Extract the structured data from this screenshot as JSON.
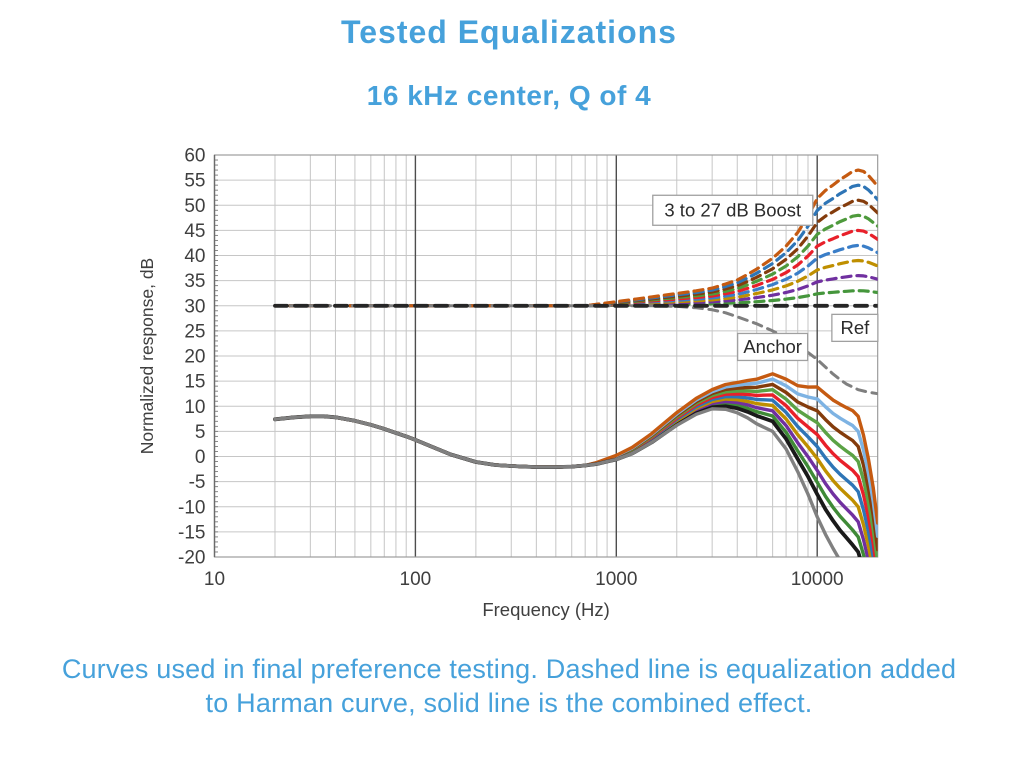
{
  "page": {
    "background": "#ffffff",
    "accent_blue": "#46A1DB"
  },
  "header": {
    "title": "Tested Equalizations",
    "subtitle": "16 kHz center, Q of 4"
  },
  "caption": "Curves used in final preference testing. Dashed line is equalization added to Harman curve, solid line is the combined effect.",
  "chart_data": {
    "type": "line",
    "xlabel": "Frequency (Hz)",
    "ylabel": "Normalized response, dB",
    "x_scale": "log",
    "xlim": [
      10,
      20000
    ],
    "ylim": [
      -20,
      60
    ],
    "y_tick_step": 5,
    "x_major_ticks": [
      10,
      100,
      1000,
      10000
    ],
    "grid": true,
    "legend": "none",
    "annotations": [
      {
        "id": "boost-range-label",
        "text": "3 to 27 dB Boost",
        "freq_hz": 3800,
        "db": 49.0
      },
      {
        "id": "ref-label",
        "text": "Ref",
        "freq_hz": 15400,
        "db": 25.6
      },
      {
        "id": "anchor-label",
        "text": "Anchor",
        "freq_hz": 6000,
        "db": 21.8
      }
    ],
    "eq": {
      "center_hz": 16000,
      "q": 4,
      "boosts_db": [
        3,
        6,
        9,
        12,
        15,
        18,
        21,
        24,
        27
      ],
      "baseline_db": 30,
      "shape": {
        "freqs": [
          20,
          700,
          1000,
          1200,
          1500,
          2000,
          2500,
          3000,
          3500,
          4000,
          4500,
          5000,
          6000,
          7000,
          8000,
          9000,
          10000,
          11000,
          12000,
          13000,
          14000,
          15000,
          16000,
          17000,
          18000,
          19000,
          20000
        ],
        "gain_fraction": [
          0,
          0,
          0.03,
          0.045,
          0.065,
          0.09,
          0.11,
          0.13,
          0.16,
          0.19,
          0.23,
          0.27,
          0.35,
          0.44,
          0.54,
          0.66,
          0.79,
          0.85,
          0.89,
          0.93,
          0.96,
          0.99,
          1.0,
          0.99,
          0.96,
          0.92,
          0.88
        ]
      }
    },
    "ref_dashed": {
      "level_db": 30,
      "span_hz": [
        20,
        20000
      ],
      "color": "#262626"
    },
    "harman_solid": {
      "name": "Ref (Harman curve)",
      "color": "#1A1A1A",
      "freqs": [
        20,
        25,
        30,
        35,
        40,
        50,
        60,
        70,
        80,
        90,
        100,
        120,
        150,
        200,
        250,
        300,
        400,
        500,
        600,
        700,
        800,
        900,
        1000,
        1200,
        1500,
        2000,
        2500,
        3000,
        3500,
        4000,
        4500,
        5000,
        6000,
        7000,
        8000,
        9000,
        10000,
        11000,
        12000,
        13000,
        14000,
        15000,
        16000,
        17000,
        18000,
        19000,
        20000
      ],
      "db": [
        7.4,
        7.8,
        8.0,
        8.0,
        7.8,
        7.1,
        6.3,
        5.5,
        4.7,
        4.0,
        3.3,
        2.0,
        0.4,
        -1.1,
        -1.7,
        -1.9,
        -2.1,
        -2.1,
        -2.0,
        -1.8,
        -1.5,
        -1.0,
        -0.6,
        0.6,
        2.8,
        6.3,
        8.6,
        9.8,
        10.0,
        9.6,
        8.9,
        8.1,
        7.0,
        3.5,
        -0.5,
        -4.0,
        -7.5,
        -10.5,
        -12.8,
        -14.7,
        -16.2,
        -17.6,
        -19.0,
        -22.5,
        -26.5,
        -31.0,
        -37.0
      ]
    },
    "anchor_solid": {
      "name": "Anchor (combined)",
      "color": "#808080",
      "freqs": [
        20,
        25,
        30,
        35,
        40,
        50,
        60,
        70,
        80,
        90,
        100,
        120,
        150,
        200,
        250,
        300,
        400,
        500,
        600,
        700,
        800,
        900,
        1000,
        1200,
        1500,
        2000,
        2500,
        3000,
        3500,
        4000,
        4500,
        5000,
        6000,
        7000,
        8000,
        9000,
        10000,
        11000,
        12000,
        13000,
        14000,
        16000,
        18000,
        20000
      ],
      "db": [
        7.4,
        7.8,
        8.0,
        8.0,
        7.8,
        7.1,
        6.3,
        5.5,
        4.7,
        4.0,
        3.3,
        2.0,
        0.4,
        -1.1,
        -1.7,
        -1.9,
        -2.1,
        -2.1,
        -2.0,
        -1.8,
        -1.5,
        -1.0,
        -0.6,
        0.6,
        2.8,
        6.2,
        8.4,
        9.5,
        9.4,
        8.7,
        7.7,
        6.5,
        5.0,
        1.5,
        -3.0,
        -7.5,
        -12.0,
        -15.5,
        -18.3,
        -20.7,
        -23.0,
        -27.0,
        -31.0,
        -35.0
      ]
    },
    "anchor_eq_dashed": {
      "name": "Anchor EQ",
      "color": "#7F7F7F",
      "freqs": [
        20,
        1000,
        1500,
        2000,
        2500,
        3000,
        3500,
        4000,
        5000,
        6000,
        7000,
        8000,
        9000,
        10000,
        11000,
        12000,
        13000,
        14000,
        16000,
        18000,
        20000
      ],
      "db": [
        30,
        30,
        30,
        29.9,
        29.6,
        29.2,
        28.6,
        27.8,
        26.4,
        25.0,
        23.6,
        22.2,
        20.7,
        19.3,
        17.8,
        16.4,
        15.3,
        14.4,
        13.3,
        12.8,
        12.5
      ]
    },
    "colors": {
      "dashed": {
        "3": "#45963C",
        "6": "#7030A0",
        "9": "#BF8F00",
        "12": "#3A7EC8",
        "15": "#E8202A",
        "18": "#4E9A3C",
        "21": "#843C0C",
        "24": "#2E75B6",
        "27": "#C55A11"
      },
      "solid": {
        "3": "#3F8A37",
        "6": "#7030A0",
        "9": "#BF8F00",
        "12": "#2E75B6",
        "15": "#E8202A",
        "18": "#5BA245",
        "21": "#843C0C",
        "24": "#7EB3E3",
        "27": "#C55A11"
      },
      "grid": "#C6C6C6",
      "grid_major": "#4D4D4D",
      "plot_border": "#9C9C9C",
      "axis_text": "#3F3F3F",
      "annotation_border": "#A0A0A0",
      "annotation_text": "#2B2B2B"
    }
  }
}
